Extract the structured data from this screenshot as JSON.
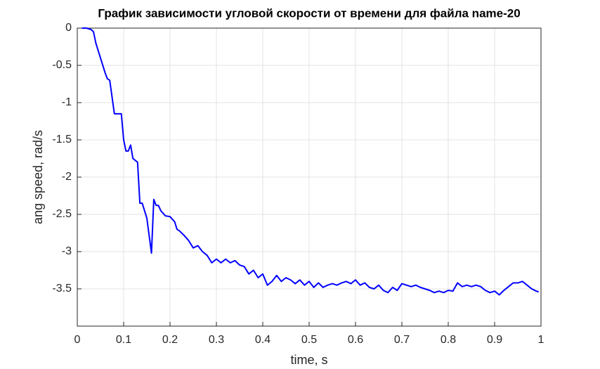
{
  "chart_data": {
    "type": "line",
    "title": "График зависимости угловой скорости от времени для файла name-20",
    "xlabel": "time, s",
    "ylabel": "ang speed, rad/s",
    "x": [
      0.01,
      0.02,
      0.03,
      0.035,
      0.04,
      0.05,
      0.06,
      0.065,
      0.07,
      0.08,
      0.09,
      0.095,
      0.1,
      0.105,
      0.11,
      0.115,
      0.12,
      0.13,
      0.135,
      0.14,
      0.15,
      0.16,
      0.165,
      0.17,
      0.175,
      0.18,
      0.19,
      0.2,
      0.21,
      0.215,
      0.22,
      0.23,
      0.24,
      0.25,
      0.26,
      0.27,
      0.28,
      0.29,
      0.3,
      0.31,
      0.32,
      0.33,
      0.34,
      0.35,
      0.36,
      0.37,
      0.38,
      0.39,
      0.4,
      0.41,
      0.42,
      0.43,
      0.44,
      0.45,
      0.46,
      0.47,
      0.48,
      0.49,
      0.5,
      0.51,
      0.52,
      0.53,
      0.54,
      0.55,
      0.56,
      0.57,
      0.58,
      0.59,
      0.6,
      0.61,
      0.62,
      0.63,
      0.64,
      0.65,
      0.66,
      0.67,
      0.68,
      0.69,
      0.7,
      0.71,
      0.72,
      0.73,
      0.74,
      0.75,
      0.76,
      0.77,
      0.78,
      0.79,
      0.8,
      0.81,
      0.82,
      0.83,
      0.84,
      0.85,
      0.86,
      0.87,
      0.88,
      0.89,
      0.9,
      0.91,
      0.92,
      0.93,
      0.94,
      0.95,
      0.96,
      0.97,
      0.98,
      0.99,
      0.995
    ],
    "series": [
      {
        "color": "#0000ff",
        "values": [
          0,
          0,
          -0.02,
          -0.05,
          -0.2,
          -0.4,
          -0.6,
          -0.68,
          -0.7,
          -1.15,
          -1.15,
          -1.15,
          -1.5,
          -1.65,
          -1.65,
          -1.57,
          -1.75,
          -1.8,
          -2.35,
          -2.35,
          -2.55,
          -3.02,
          -2.3,
          -2.38,
          -2.38,
          -2.45,
          -2.52,
          -2.53,
          -2.6,
          -2.7,
          -2.72,
          -2.78,
          -2.85,
          -2.95,
          -2.92,
          -3.0,
          -3.05,
          -3.15,
          -3.1,
          -3.15,
          -3.1,
          -3.15,
          -3.12,
          -3.18,
          -3.2,
          -3.3,
          -3.25,
          -3.35,
          -3.3,
          -3.45,
          -3.4,
          -3.32,
          -3.4,
          -3.35,
          -3.38,
          -3.43,
          -3.38,
          -3.45,
          -3.4,
          -3.48,
          -3.42,
          -3.48,
          -3.45,
          -3.43,
          -3.45,
          -3.42,
          -3.4,
          -3.43,
          -3.38,
          -3.45,
          -3.42,
          -3.48,
          -3.5,
          -3.45,
          -3.52,
          -3.55,
          -3.48,
          -3.52,
          -3.43,
          -3.45,
          -3.47,
          -3.45,
          -3.48,
          -3.5,
          -3.52,
          -3.55,
          -3.53,
          -3.55,
          -3.52,
          -3.53,
          -3.42,
          -3.47,
          -3.45,
          -3.47,
          -3.45,
          -3.47,
          -3.52,
          -3.55,
          -3.53,
          -3.58,
          -3.52,
          -3.47,
          -3.42,
          -3.42,
          -3.4,
          -3.45,
          -3.5,
          -3.53,
          -3.54
        ]
      }
    ],
    "xlim": [
      0,
      1
    ],
    "ylim": [
      -4,
      0
    ],
    "xticks": [
      0,
      0.1,
      0.2,
      0.3,
      0.4,
      0.5,
      0.6,
      0.7,
      0.8,
      0.9,
      1
    ],
    "yticks": [
      0,
      -0.5,
      -1,
      -1.5,
      -2,
      -2.5,
      -3,
      -3.5
    ],
    "grid": true
  }
}
